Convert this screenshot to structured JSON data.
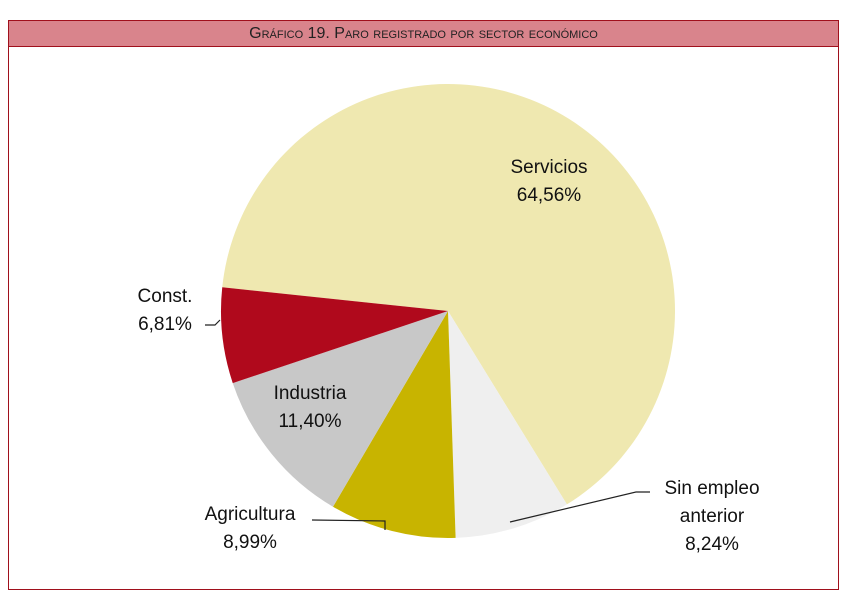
{
  "chart_data": {
    "type": "pie",
    "title": "Gráfico 19. Paro registrado por sector económico",
    "categories": [
      "Servicios",
      "Sin empleo anterior",
      "Agricultura",
      "Industria",
      "Const."
    ],
    "values": [
      64.56,
      8.24,
      8.99,
      11.4,
      6.81
    ],
    "value_labels": [
      "64,56%",
      "8,24%",
      "8,99%",
      "11,40%",
      "6,81%"
    ],
    "colors": [
      "#efe8b0",
      "#efefef",
      "#c8b400",
      "#c8c8c8",
      "#b0091c"
    ]
  }
}
